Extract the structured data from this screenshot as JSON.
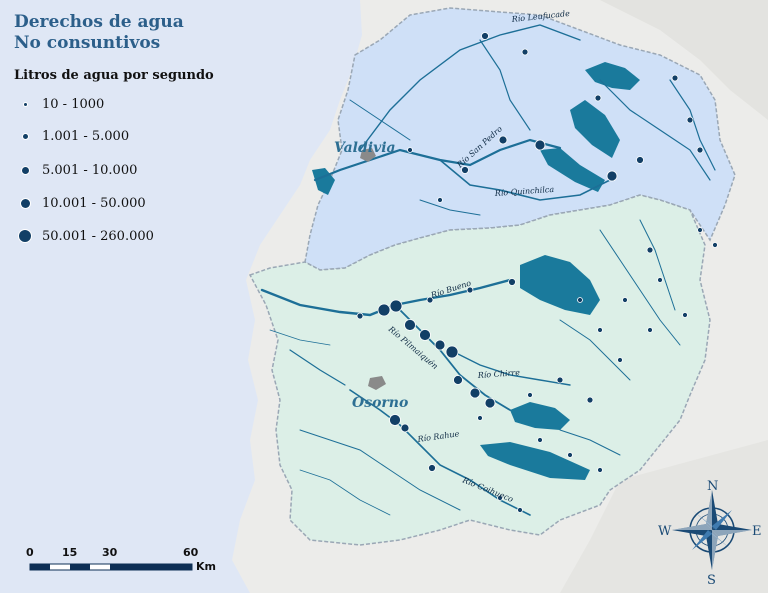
{
  "map": {
    "title_line1": "Derechos de agua",
    "title_line2": "No consuntivos",
    "legend_title": "Litros de agua por segundo",
    "legend": [
      {
        "label": "10 - 1000",
        "size": 3
      },
      {
        "label": "1.001 - 5.000",
        "size": 5
      },
      {
        "label": "5.001 - 10.000",
        "size": 7
      },
      {
        "label": "10.001 - 50.000",
        "size": 9
      },
      {
        "label": "50.001 - 260.000",
        "size": 12
      }
    ],
    "cities": [
      {
        "name": "Valdivia"
      },
      {
        "name": "Osorno"
      }
    ],
    "rivers": [
      {
        "name": "Río Leufucade"
      },
      {
        "name": "Río San Pedro"
      },
      {
        "name": "Río Quinchilca"
      },
      {
        "name": "Río Bueno"
      },
      {
        "name": "Río Pilmaiquén"
      },
      {
        "name": "Río Chirre"
      },
      {
        "name": "Río Rahue"
      },
      {
        "name": "Río Coihueco"
      }
    ],
    "scale": {
      "ticks": [
        "0",
        "15",
        "30",
        "60"
      ],
      "unit": "Km"
    },
    "compass": {
      "n": "N",
      "s": "S",
      "e": "E",
      "w": "W"
    },
    "colors": {
      "ocean": "#dfe7f5",
      "land": "#ececea",
      "north_basin": "#cfe0f7",
      "south_basin": "#dcefe7",
      "river": "#1d6f97",
      "lake": "#1a7a9c",
      "dot": "#123f66",
      "title": "#2c5f8a"
    }
  }
}
